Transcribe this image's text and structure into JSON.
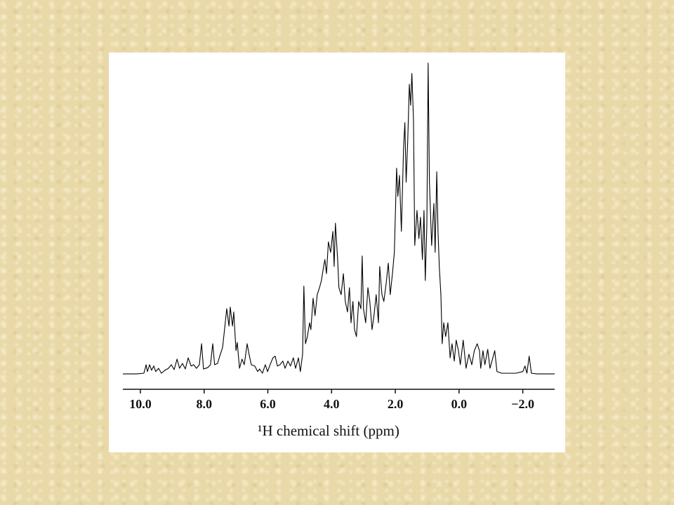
{
  "chart_data": {
    "type": "line",
    "xlabel": "¹H chemical shift (ppm)",
    "color": "#000000",
    "xlim": [
      10.55,
      -3.0
    ],
    "ylim": [
      0,
      100
    ],
    "xticks": [
      {
        "value": 10,
        "label": "10.0"
      },
      {
        "value": 8,
        "label": "8.0"
      },
      {
        "value": 6,
        "label": "6.0"
      },
      {
        "value": 4,
        "label": "4.0"
      },
      {
        "value": 2,
        "label": "2.0"
      },
      {
        "value": 0,
        "label": "0.0"
      },
      {
        "value": -2,
        "label": "−2.0"
      }
    ],
    "x": [
      10.55,
      10.33,
      10.11,
      9.89,
      9.82,
      9.78,
      9.71,
      9.65,
      9.58,
      9.52,
      9.43,
      9.34,
      9.23,
      9.12,
      9.03,
      8.94,
      8.85,
      8.77,
      8.68,
      8.59,
      8.5,
      8.41,
      8.33,
      8.24,
      8.15,
      8.08,
      8.02,
      7.89,
      7.8,
      7.73,
      7.67,
      7.58,
      7.49,
      7.42,
      7.36,
      7.29,
      7.22,
      7.18,
      7.11,
      7.07,
      7.0,
      6.96,
      6.89,
      6.81,
      6.74,
      6.65,
      6.59,
      6.52,
      6.41,
      6.32,
      6.26,
      6.17,
      6.08,
      6.01,
      5.93,
      5.84,
      5.77,
      5.7,
      5.62,
      5.53,
      5.46,
      5.37,
      5.29,
      5.2,
      5.13,
      5.04,
      4.98,
      4.91,
      4.87,
      4.82,
      4.76,
      4.69,
      4.65,
      4.58,
      4.52,
      4.45,
      4.38,
      4.32,
      4.25,
      4.21,
      4.16,
      4.1,
      4.03,
      3.96,
      3.92,
      3.88,
      3.81,
      3.77,
      3.7,
      3.63,
      3.57,
      3.5,
      3.44,
      3.39,
      3.33,
      3.28,
      3.22,
      3.15,
      3.08,
      3.04,
      3.0,
      2.93,
      2.86,
      2.8,
      2.73,
      2.67,
      2.6,
      2.53,
      2.49,
      2.42,
      2.36,
      2.29,
      2.22,
      2.16,
      2.09,
      2.03,
      1.96,
      1.92,
      1.87,
      1.81,
      1.74,
      1.7,
      1.66,
      1.61,
      1.56,
      1.52,
      1.48,
      1.43,
      1.39,
      1.32,
      1.26,
      1.21,
      1.15,
      1.1,
      1.06,
      1.01,
      0.97,
      0.93,
      0.86,
      0.79,
      0.75,
      0.7,
      0.66,
      0.62,
      0.57,
      0.53,
      0.48,
      0.42,
      0.35,
      0.28,
      0.22,
      0.15,
      0.09,
      0.02,
      -0.04,
      -0.13,
      -0.22,
      -0.31,
      -0.4,
      -0.48,
      -0.57,
      -0.64,
      -0.68,
      -0.75,
      -0.81,
      -0.9,
      -0.97,
      -1.06,
      -1.12,
      -1.19,
      -1.34,
      -1.56,
      -1.78,
      -2.0,
      -2.07,
      -2.13,
      -2.2,
      -2.27,
      -2.44,
      -2.78,
      -3.0
    ],
    "values": [
      4.7,
      4.7,
      4.7,
      4.9,
      7.5,
      5.4,
      7.5,
      5.8,
      7.1,
      5.4,
      6.4,
      4.9,
      5.8,
      6.4,
      7.5,
      6.0,
      9.2,
      6.4,
      7.9,
      6.2,
      9.6,
      7.1,
      7.5,
      6.4,
      7.5,
      13.9,
      6.2,
      6.6,
      7.5,
      13.9,
      7.5,
      7.9,
      10.7,
      12.8,
      18.2,
      24.6,
      19.3,
      25.1,
      19.3,
      23.6,
      11.8,
      14.3,
      6.4,
      9.2,
      7.5,
      13.9,
      10.7,
      7.5,
      7.1,
      5.4,
      6.2,
      4.9,
      7.5,
      5.4,
      7.5,
      9.6,
      10.1,
      7.1,
      7.5,
      8.6,
      6.4,
      8.6,
      7.1,
      9.6,
      6.4,
      9.6,
      5.4,
      10.7,
      31.5,
      13.9,
      16.1,
      20.3,
      18.2,
      27.8,
      22.5,
      28.9,
      31.0,
      33.2,
      37.5,
      39.6,
      35.3,
      45.0,
      41.8,
      48.2,
      37.5,
      50.7,
      39.6,
      31.0,
      28.9,
      35.3,
      26.8,
      23.6,
      31.0,
      20.3,
      26.8,
      18.2,
      16.1,
      26.8,
      24.6,
      40.7,
      24.6,
      20.3,
      31.0,
      26.8,
      18.2,
      22.5,
      28.9,
      20.3,
      37.5,
      28.9,
      26.8,
      32.1,
      38.5,
      28.9,
      35.3,
      41.8,
      67.5,
      58.9,
      65.3,
      48.2,
      73.9,
      81.4,
      63.2,
      76.0,
      93.1,
      86.7,
      96.4,
      82.4,
      43.9,
      54.6,
      46.0,
      52.5,
      39.6,
      54.6,
      33.2,
      50.3,
      99.6,
      63.2,
      43.9,
      56.7,
      41.8,
      66.4,
      48.2,
      37.5,
      28.9,
      13.9,
      20.3,
      16.1,
      20.3,
      9.6,
      13.9,
      8.6,
      15.0,
      11.8,
      7.5,
      15.0,
      6.4,
      10.7,
      7.5,
      11.8,
      13.9,
      11.8,
      6.4,
      11.8,
      7.5,
      12.2,
      6.4,
      9.6,
      11.8,
      5.4,
      4.9,
      4.9,
      4.9,
      5.4,
      7.1,
      4.9,
      10.1,
      4.9,
      4.7,
      4.7,
      4.7
    ]
  }
}
